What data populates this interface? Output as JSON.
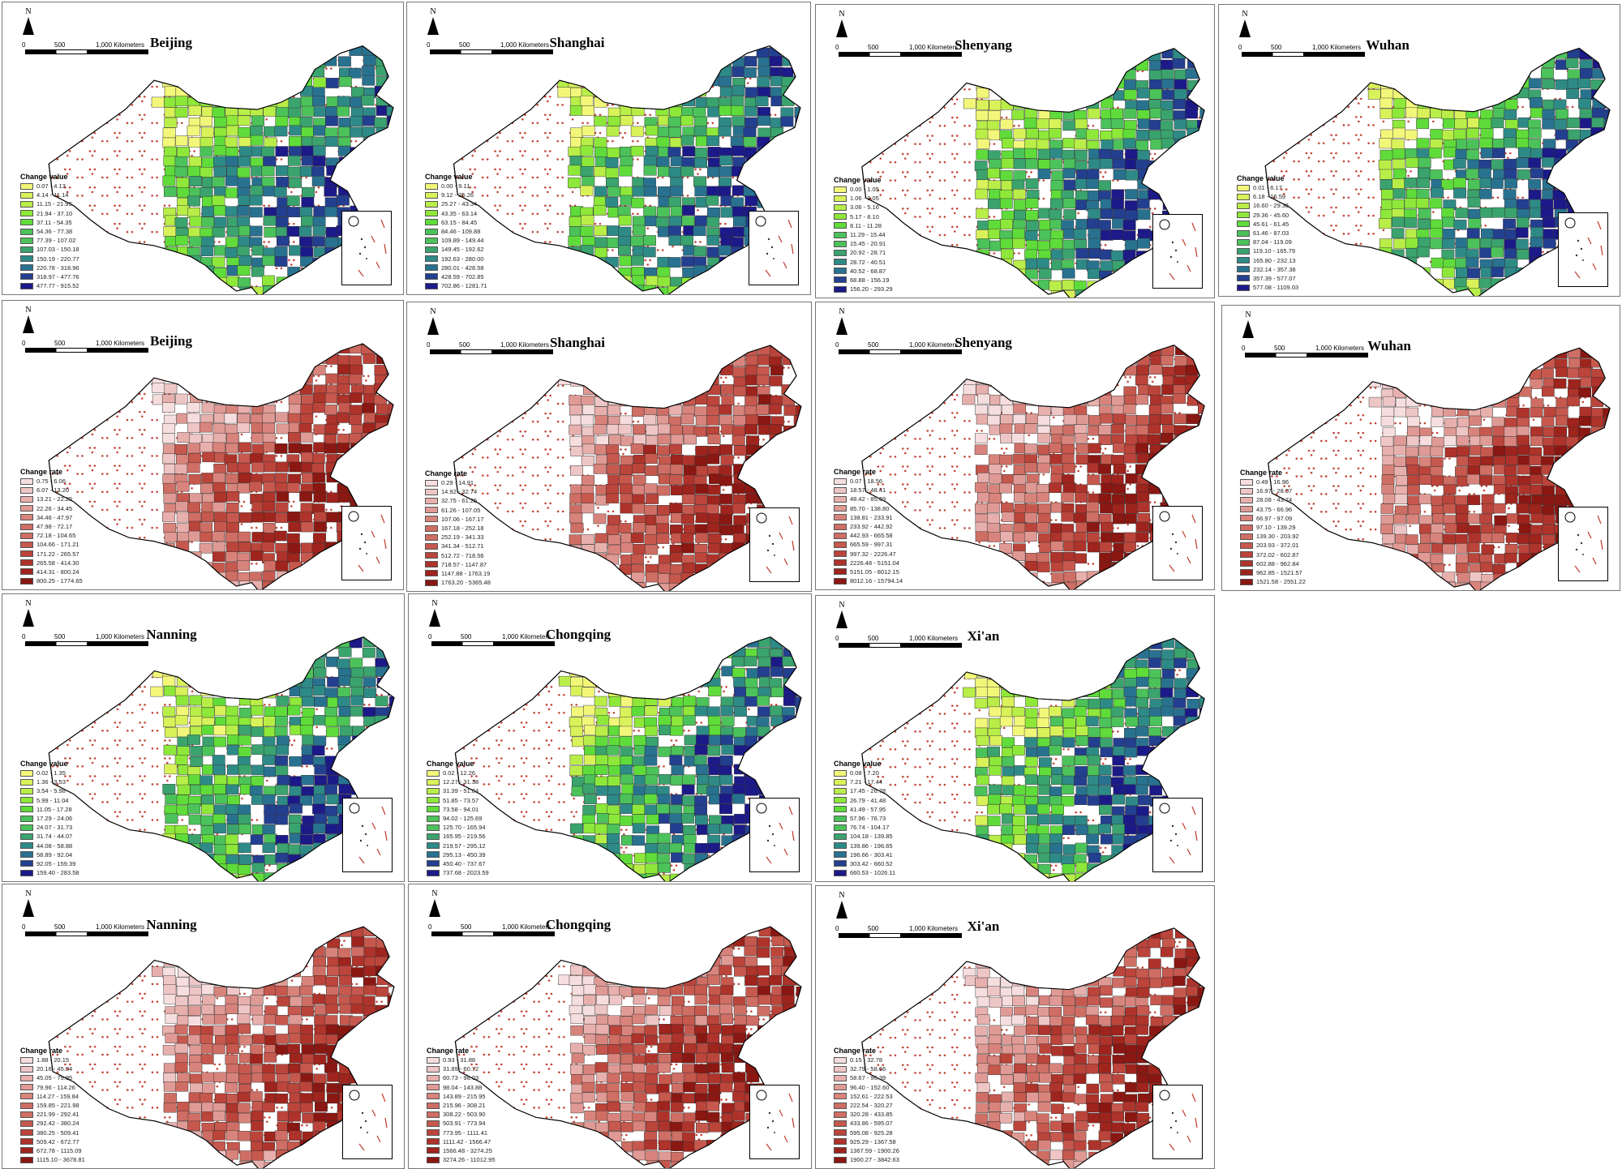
{
  "figure": {
    "north_label": "N",
    "scale_labels": [
      "0",
      "500",
      "1,000 Kilometers"
    ],
    "value_title": "Change value",
    "rate_title": "Change rate"
  },
  "colors": {
    "value_ramp": [
      "#f2f77a",
      "#d9f25a",
      "#b9ee48",
      "#8ee83a",
      "#5fdc3a",
      "#4cc25a",
      "#3aa36e",
      "#2e8a86",
      "#287290",
      "#233f8f",
      "#1c1a88"
    ],
    "rate_ramp": [
      "#f6dede",
      "#efc6c6",
      "#e8b0ad",
      "#e09a95",
      "#d8847c",
      "#cf6e64",
      "#c6584e",
      "#bb443b",
      "#ae332b",
      "#9e241d",
      "#8a1712"
    ],
    "map_outline": "#000000",
    "dots": "#c0392b"
  },
  "panels": [
    {
      "city": "Beijing",
      "type": "value",
      "legend": [
        "0.07 - 4.13",
        "4.14 - 11.14",
        "11.15 - 21.93",
        "21.94 - 37.10",
        "37.11 - 54.35",
        "54.36 - 77.38",
        "77.39 - 107.02",
        "107.03 - 150.18",
        "150.19 - 220.77",
        "220.78 - 318.96",
        "318.97 - 477.76",
        "477.77 - 915.52"
      ]
    },
    {
      "city": "Shanghai",
      "type": "value",
      "legend": [
        "0.00 - 9.11",
        "9.12 - 25.26",
        "25.27 - 43.34",
        "43.35 - 63.14",
        "63.15 - 84.45",
        "84.46 - 109.88",
        "109.89 - 149.44",
        "149.45 - 192.62",
        "192.63 - 280.00",
        "280.01 - 428.58",
        "428.59 - 702.85",
        "702.86 - 1281.71"
      ]
    },
    {
      "city": "Shenyang",
      "type": "value",
      "legend": [
        "0.00 - 1.05",
        "1.06 - 3.05",
        "3.06 - 5.16",
        "5.17 - 8.10",
        "8.11 - 11.28",
        "11.29 - 15.44",
        "15.45 - 20.91",
        "20.92 - 28.71",
        "28.72 - 40.51",
        "40.52 - 68.87",
        "68.88 - 156.19",
        "156.20 - 293.29"
      ]
    },
    {
      "city": "Wuhan",
      "type": "value",
      "legend": [
        "0.01 - 6.17",
        "6.18 - 16.59",
        "16.60 - 29.35",
        "29.36 - 45.60",
        "45.61 - 61.45",
        "61.46 - 87.03",
        "87.04 - 119.09",
        "119.10 - 165.79",
        "165.80 - 232.13",
        "232.14 - 357.38",
        "357.39 - 577.07",
        "577.08 - 1109.03"
      ]
    },
    {
      "city": "Beijing",
      "type": "rate",
      "legend": [
        "0.75 - 6.06",
        "6.07 - 13.20",
        "13.21 - 22.25",
        "22.26 - 34.45",
        "34.46 - 47.97",
        "47.98 - 72.17",
        "72.18 - 104.65",
        "104.66 - 171.21",
        "171.22 - 265.57",
        "265.58 - 414.30",
        "414.31 - 800.24",
        "800.25 - 1774.65"
      ]
    },
    {
      "city": "Shanghai",
      "type": "rate",
      "legend": [
        "0.29 - 14.91",
        "14.92 - 32.74",
        "32.75 - 61.25",
        "61.26 - 107.05",
        "107.06 - 167.17",
        "167.18 - 252.18",
        "252.19 - 341.33",
        "341.34 - 512.71",
        "512.72 - 718.56",
        "718.57 - 1147.87",
        "1147.88 - 1763.19",
        "1763.20 - 5365.48"
      ]
    },
    {
      "city": "Shenyang",
      "type": "rate",
      "legend": [
        "0.07 - 18.56",
        "18.57 - 48.41",
        "48.42 - 85.69",
        "85.70 - 138.80",
        "138.81 - 233.91",
        "233.92 - 442.92",
        "442.93 - 665.58",
        "665.59 - 997.31",
        "997.32 - 2226.47",
        "2226.48 - 5151.04",
        "5151.05 - 8012.15",
        "8012.16 - 15794.14"
      ]
    },
    {
      "city": "Wuhan",
      "type": "rate",
      "legend": [
        "0.49 - 16.96",
        "16.97 - 28.07",
        "28.08 - 43.74",
        "43.75 - 66.96",
        "66.97 - 97.09",
        "97.10 - 139.29",
        "139.30 - 203.92",
        "203.93 - 372.01",
        "372.02 - 602.87",
        "602.88 - 962.84",
        "962.85 - 1521.57",
        "1521.58 - 2551.22"
      ]
    },
    {
      "city": "Nanning",
      "type": "value",
      "legend": [
        "0.02 - 1.35",
        "1.36 - 3.53",
        "3.54 - 5.98",
        "5.99 - 11.04",
        "11.05 - 17.28",
        "17.29 - 24.06",
        "24.07 - 31.73",
        "31.74 - 44.07",
        "44.08 - 58.88",
        "58.89 - 92.04",
        "92.05 - 159.39",
        "159.40 - 283.58"
      ]
    },
    {
      "city": "Chongqing",
      "type": "value",
      "legend": [
        "0.02 - 12.26",
        "12.27 - 31.38",
        "31.39 - 51.84",
        "51.85 - 73.57",
        "73.58 - 94.01",
        "94.02 - 125.69",
        "125.70 - 165.94",
        "165.95 - 219.56",
        "219.57 - 295.12",
        "295.13 - 450.39",
        "450.40 - 737.67",
        "737.68 - 2023.59"
      ]
    },
    {
      "city": "Xi'an",
      "type": "value",
      "legend": [
        "0.08 - 7.20",
        "7.21 - 17.44",
        "17.45 - 26.78",
        "26.79 - 41.48",
        "41.49 - 57.95",
        "57.96 - 76.73",
        "76.74 - 104.17",
        "104.18 - 139.85",
        "139.86 - 196.65",
        "196.66 - 303.41",
        "303.42 - 660.52",
        "660.53 - 1026.11"
      ]
    },
    {
      "city": "Nanning",
      "type": "rate",
      "legend": [
        "1.88 - 20.15",
        "20.16 - 45.04",
        "45.05 - 79.95",
        "79.96 - 114.26",
        "114.27 - 159.84",
        "159.85 - 221.98",
        "221.99 - 292.41",
        "292.42 - 380.24",
        "380.25 - 509.41",
        "509.42 - 672.77",
        "672.78 - 1115.09",
        "1115.10 - 3678.81"
      ]
    },
    {
      "city": "Chongqing",
      "type": "rate",
      "legend": [
        "0.93 - 31.88",
        "31.89 - 60.72",
        "60.73 - 98.03",
        "98.04 - 143.88",
        "143.89 - 215.95",
        "215.96 - 308.21",
        "308.22 - 503.90",
        "503.91 - 773.94",
        "773.95 - 1111.41",
        "1111.42 - 1566.47",
        "1566.48 - 3274.25",
        "3274.26 - 11012.95"
      ]
    },
    {
      "city": "Xi'an",
      "type": "rate",
      "legend": [
        "0.15 - 32.78",
        "32.79 - 58.66",
        "58.67 - 96.39",
        "96.40 - 152.60",
        "152.61 - 222.53",
        "222.54 - 320.27",
        "320.28 - 433.85",
        "433.86 - 595.07",
        "595.08 - 925.28",
        "925.29 - 1367.58",
        "1367.59 - 1900.26",
        "1900.27 - 3842.63"
      ]
    }
  ]
}
